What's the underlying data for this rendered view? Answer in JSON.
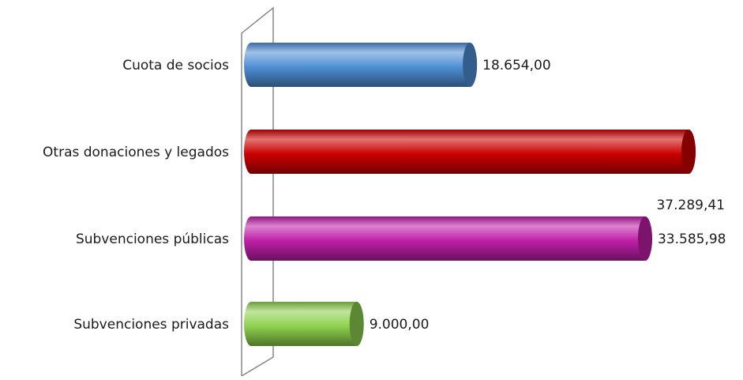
{
  "chart_data": {
    "type": "bar",
    "orientation": "horizontal",
    "categories": [
      "Cuota de socios",
      "Otras donaciones y legados",
      "Subvenciones públicas",
      "Subvenciones privadas"
    ],
    "values": [
      18654.0,
      37289.41,
      33585.98,
      9000.0
    ],
    "value_labels": [
      "18.654,00",
      "37.289,41",
      "33.585,98",
      "9.000,00"
    ],
    "colors": [
      "#4f8fd6",
      "#cc0000",
      "#bf1fa8",
      "#8fd14f"
    ],
    "title": "",
    "xlabel": "",
    "ylabel": "",
    "xlim": [
      0,
      40000
    ],
    "grid": false,
    "legend": "none",
    "style": "3d-cylinder"
  }
}
